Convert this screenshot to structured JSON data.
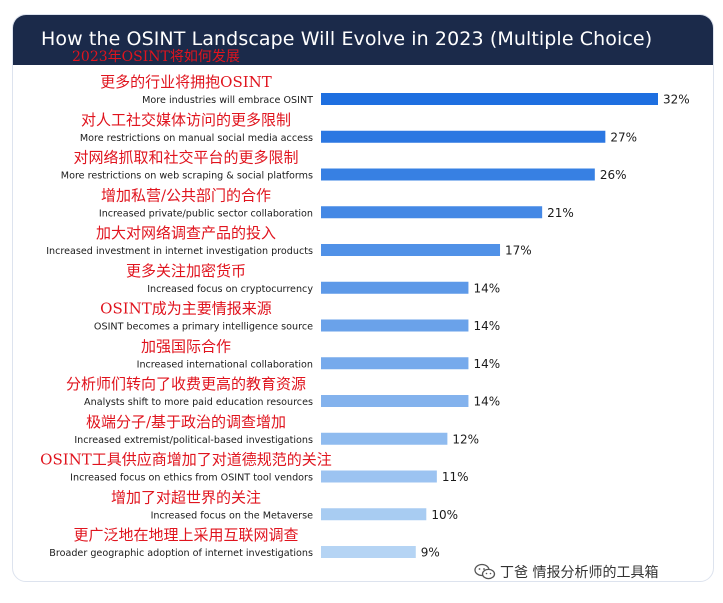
{
  "header": {
    "title": "How the OSINT Landscape Will Evolve in 2023 (Multiple Choice)",
    "overlay_title_cn": "2023年OSINT将如何发展"
  },
  "colors": {
    "header_bg": "#1b2a4a",
    "bar_start": "#1e6fe0",
    "bar_end": "#b5d4f4",
    "cn_text": "#e0141e"
  },
  "watermark": {
    "icon": "wechat-icon",
    "text": "丁爸 情报分析师的工具箱"
  },
  "chart_data": {
    "type": "bar",
    "orientation": "horizontal",
    "title": "How the OSINT Landscape Will Evolve in 2023 (Multiple Choice)",
    "xlabel": "",
    "ylabel": "",
    "xlim": [
      0,
      35
    ],
    "grid": false,
    "unit": "%",
    "categories": [
      "More industries will embrace OSINT",
      "More restrictions on manual social media access",
      "More restrictions on web scraping & social platforms",
      "Increased private/public sector collaboration",
      "Increased investment in internet investigation products",
      "Increased focus on cryptocurrency",
      "OSINT becomes a primary intelligence source",
      "Increased international collaboration",
      "Analysts shift to more paid education resources",
      "Increased extremist/political-based investigations",
      "Increased focus on ethics from OSINT tool vendors",
      "Increased focus on the Metaverse",
      "Broader geographic adoption of internet investigations"
    ],
    "categories_cn": [
      "更多的行业将拥抱OSINT",
      "对人工社交媒体访问的更多限制",
      "对网络抓取和社交平台的更多限制",
      "增加私营/公共部门的合作",
      "加大对网络调查产品的投入",
      "更多关注加密货币",
      "OSINT成为主要情报来源",
      "加强国际合作",
      "分析师们转向了收费更高的教育资源",
      "极端分子/基于政治的调查增加",
      "OSINT工具供应商增加了对道德规范的关注",
      "增加了对超世界的关注",
      "更广泛地在地理上采用互联网调查"
    ],
    "values": [
      32,
      27,
      26,
      21,
      17,
      14,
      14,
      14,
      14,
      12,
      11,
      10,
      9
    ],
    "value_labels": [
      "32%",
      "27%",
      "26%",
      "21%",
      "17%",
      "14%",
      "14%",
      "14%",
      "14%",
      "12%",
      "11%",
      "10%",
      "9%"
    ]
  }
}
